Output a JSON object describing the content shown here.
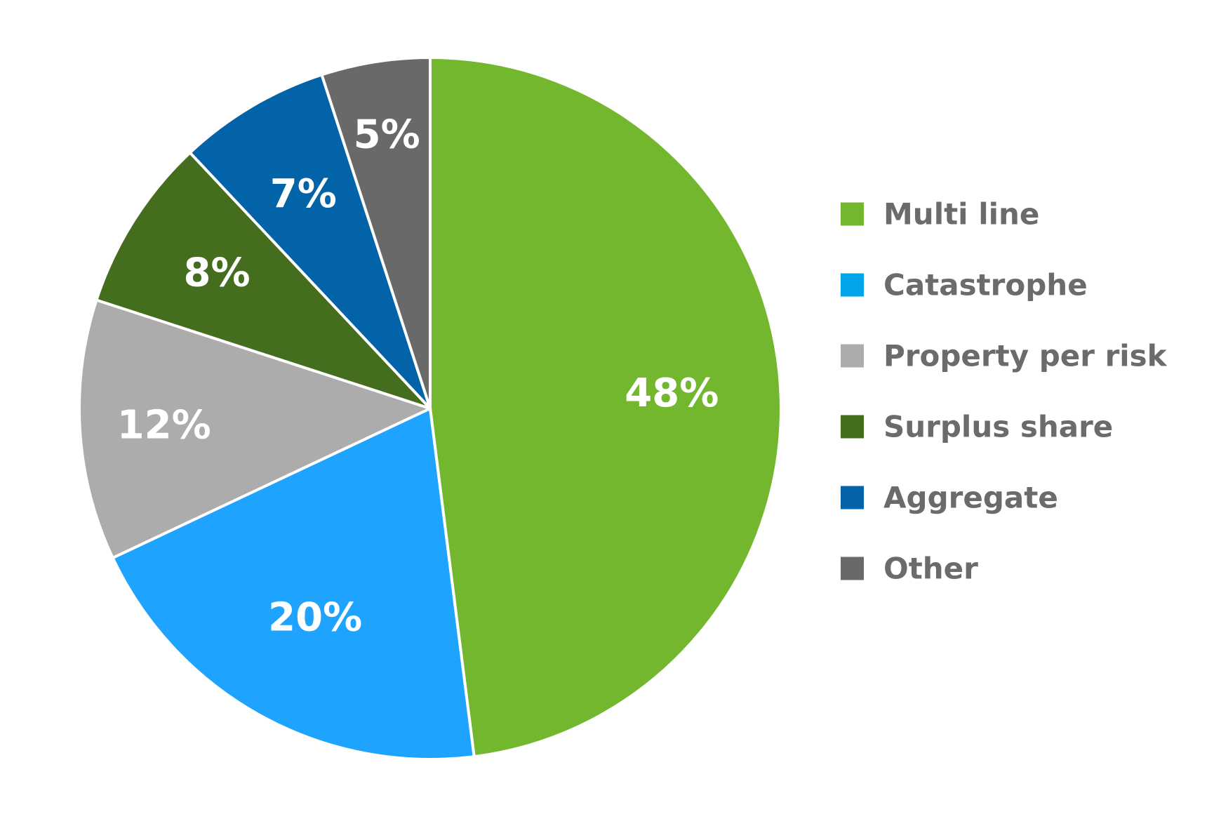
{
  "chart_data": {
    "type": "pie",
    "legend_position": "right",
    "slices": [
      {
        "name": "Multi line",
        "value": 48,
        "label": "48%",
        "color": "#72b72e"
      },
      {
        "name": "Catastrophe",
        "value": 20,
        "label": "20%",
        "color": "#1ea4ff"
      },
      {
        "name": "Property per risk",
        "value": 12,
        "label": "12%",
        "color": "#acacac"
      },
      {
        "name": "Surplus share",
        "value": 8,
        "label": "8%",
        "color": "#446d1e"
      },
      {
        "name": "Aggregate",
        "value": 7,
        "label": "7%",
        "color": "#0263a8"
      },
      {
        "name": "Other",
        "value": 5,
        "label": "5%",
        "color": "#696969"
      }
    ],
    "legend_swatch_colors": {
      "Catastrophe": "#00a6e9"
    }
  }
}
